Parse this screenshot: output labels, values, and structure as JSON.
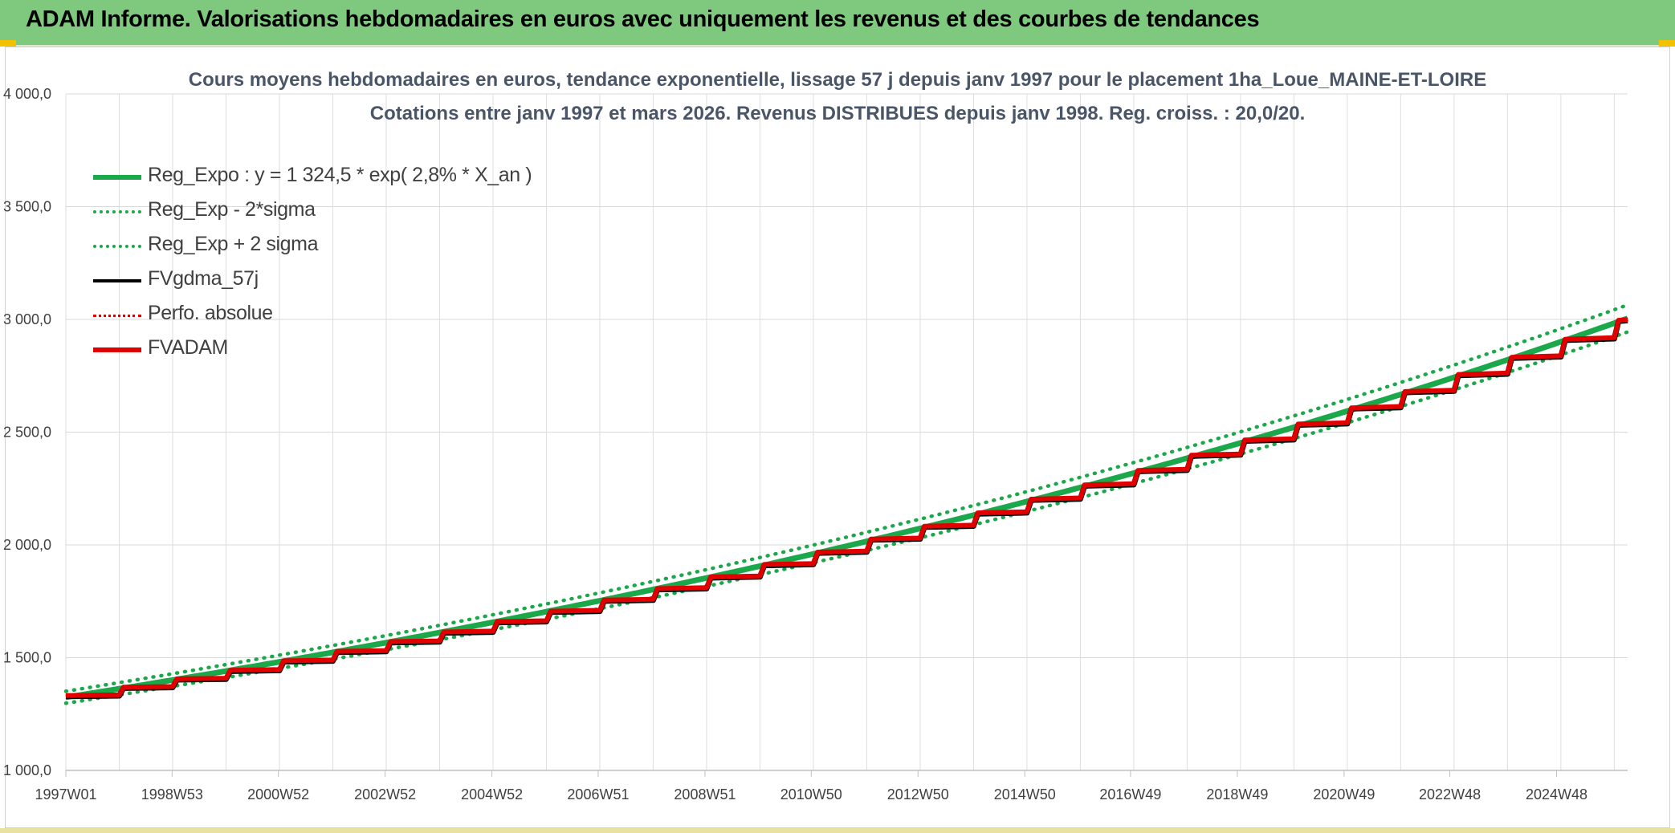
{
  "banner": {
    "title": "ADAM Informe. Valorisations hebdomadaires en euros avec uniquement les revenus et des courbes de tendances"
  },
  "chart_data": {
    "type": "line",
    "title_line1": "Cours moyens hebdomadaires en euros, tendance exponentielle, lissage 57 j depuis janv 1997 pour le placement 1ha_Loue_MAINE-ET-LOIRE",
    "title_line2": "Cotations entre janv 1997 et mars 2026. Revenus DISTRIBUES depuis janv 1998. Reg. croiss. : 20,0/20.",
    "ylim": [
      1000,
      4000
    ],
    "y_ticks": [
      {
        "value": 1000,
        "label": "1 000,0"
      },
      {
        "value": 1500,
        "label": "1 500,0"
      },
      {
        "value": 2000,
        "label": "2 000,0"
      },
      {
        "value": 2500,
        "label": "2 500,0"
      },
      {
        "value": 3000,
        "label": "3 000,0"
      },
      {
        "value": 3500,
        "label": "3 500,0"
      },
      {
        "value": 4000,
        "label": "4 000,0"
      }
    ],
    "xlim": [
      1997.0,
      2026.25
    ],
    "x_ticks": [
      {
        "value": 1997.0,
        "label": "1997W01"
      },
      {
        "value": 1998.99,
        "label": "1998W53"
      },
      {
        "value": 2000.98,
        "label": "2000W52"
      },
      {
        "value": 2002.98,
        "label": "2002W52"
      },
      {
        "value": 2004.98,
        "label": "2004W52"
      },
      {
        "value": 2006.97,
        "label": "2006W51"
      },
      {
        "value": 2008.97,
        "label": "2008W51"
      },
      {
        "value": 2010.96,
        "label": "2010W50"
      },
      {
        "value": 2012.96,
        "label": "2012W50"
      },
      {
        "value": 2014.96,
        "label": "2014W50"
      },
      {
        "value": 2016.94,
        "label": "2016W49"
      },
      {
        "value": 2018.94,
        "label": "2018W49"
      },
      {
        "value": 2020.94,
        "label": "2020W49"
      },
      {
        "value": 2022.92,
        "label": "2022W48"
      },
      {
        "value": 2024.92,
        "label": "2024W48"
      }
    ],
    "grid": true,
    "legend_position": "top-left",
    "series": [
      {
        "name": "Reg_Expo : y = 1 324,5 * exp( 2,8% *  X_an )",
        "color": "#1aa84a",
        "style": "solid",
        "kind": "exp",
        "a": 1324.5,
        "r": 0.028,
        "factor": 1.0
      },
      {
        "name": "Reg_Exp - 2*sigma",
        "color": "#1aa84a",
        "style": "dotted",
        "kind": "exp",
        "a": 1324.5,
        "r": 0.028,
        "factor": 0.98
      },
      {
        "name": "Reg_Exp + 2 sigma",
        "color": "#1aa84a",
        "style": "dotted",
        "kind": "exp",
        "a": 1324.5,
        "r": 0.028,
        "factor": 1.02
      },
      {
        "name": "FVgdma_57j",
        "color": "#000000",
        "style": "solid",
        "kind": "steps"
      },
      {
        "name": "Perfo. absolue",
        "color": "#e00000",
        "style": "dotted",
        "kind": "steps"
      },
      {
        "name": "FVADAM",
        "color": "#e00000",
        "style": "thick",
        "kind": "steps"
      }
    ],
    "annual_steps": [
      {
        "year": 1997,
        "value": 1332
      },
      {
        "year": 1998,
        "value": 1369
      },
      {
        "year": 1999,
        "value": 1406
      },
      {
        "year": 2000,
        "value": 1444
      },
      {
        "year": 2001,
        "value": 1486
      },
      {
        "year": 2002,
        "value": 1528
      },
      {
        "year": 2003,
        "value": 1571
      },
      {
        "year": 2004,
        "value": 1614
      },
      {
        "year": 2005,
        "value": 1660
      },
      {
        "year": 2006,
        "value": 1706
      },
      {
        "year": 2007,
        "value": 1755
      },
      {
        "year": 2008,
        "value": 1806
      },
      {
        "year": 2009,
        "value": 1858
      },
      {
        "year": 2010,
        "value": 1913
      },
      {
        "year": 2011,
        "value": 1968
      },
      {
        "year": 2012,
        "value": 2026
      },
      {
        "year": 2013,
        "value": 2083
      },
      {
        "year": 2014,
        "value": 2142
      },
      {
        "year": 2015,
        "value": 2203
      },
      {
        "year": 2016,
        "value": 2266
      },
      {
        "year": 2017,
        "value": 2330
      },
      {
        "year": 2018,
        "value": 2398
      },
      {
        "year": 2019,
        "value": 2465
      },
      {
        "year": 2020,
        "value": 2536
      },
      {
        "year": 2021,
        "value": 2608
      },
      {
        "year": 2022,
        "value": 2680
      },
      {
        "year": 2023,
        "value": 2756
      },
      {
        "year": 2024,
        "value": 2832
      },
      {
        "year": 2025,
        "value": 2912
      },
      {
        "year": 2026,
        "value": 2996
      }
    ]
  }
}
